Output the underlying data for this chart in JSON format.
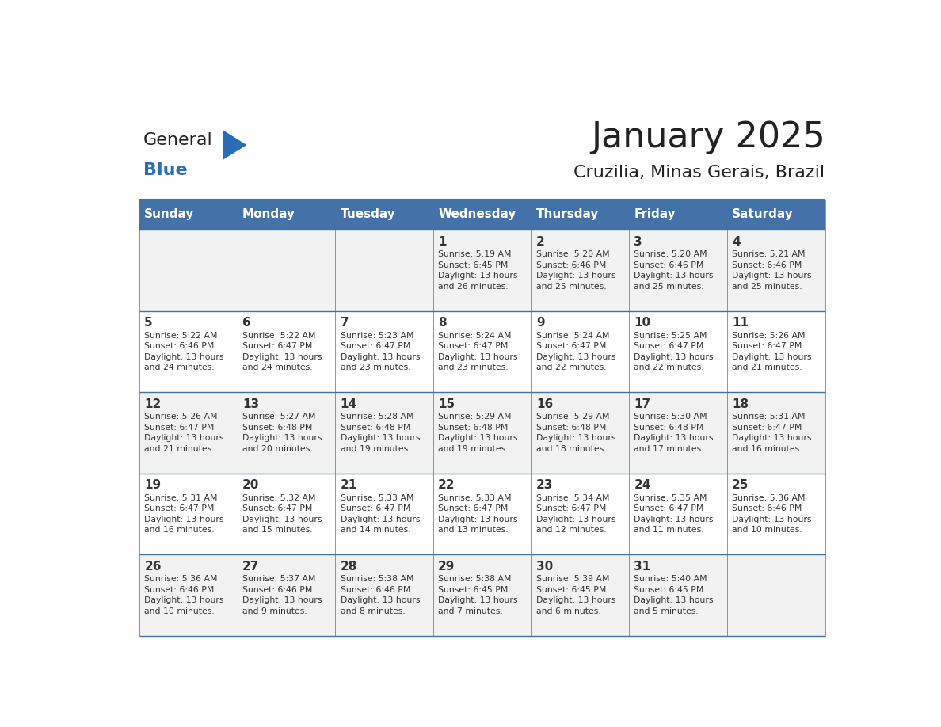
{
  "title": "January 2025",
  "subtitle": "Cruzilia, Minas Gerais, Brazil",
  "days_of_week": [
    "Sunday",
    "Monday",
    "Tuesday",
    "Wednesday",
    "Thursday",
    "Friday",
    "Saturday"
  ],
  "header_bg": "#4472a8",
  "header_text": "#ffffff",
  "row_bg_odd": "#f2f2f2",
  "row_bg_even": "#ffffff",
  "cell_text_color": "#333333",
  "day_num_color": "#333333",
  "grid_line_color": "#4472a8",
  "title_color": "#222222",
  "subtitle_color": "#222222",
  "logo_general_color": "#222222",
  "logo_blue_color": "#2a6db5",
  "calendar_data": [
    [
      {
        "day": null,
        "info": ""
      },
      {
        "day": null,
        "info": ""
      },
      {
        "day": null,
        "info": ""
      },
      {
        "day": 1,
        "info": "Sunrise: 5:19 AM\nSunset: 6:45 PM\nDaylight: 13 hours\nand 26 minutes."
      },
      {
        "day": 2,
        "info": "Sunrise: 5:20 AM\nSunset: 6:46 PM\nDaylight: 13 hours\nand 25 minutes."
      },
      {
        "day": 3,
        "info": "Sunrise: 5:20 AM\nSunset: 6:46 PM\nDaylight: 13 hours\nand 25 minutes."
      },
      {
        "day": 4,
        "info": "Sunrise: 5:21 AM\nSunset: 6:46 PM\nDaylight: 13 hours\nand 25 minutes."
      }
    ],
    [
      {
        "day": 5,
        "info": "Sunrise: 5:22 AM\nSunset: 6:46 PM\nDaylight: 13 hours\nand 24 minutes."
      },
      {
        "day": 6,
        "info": "Sunrise: 5:22 AM\nSunset: 6:47 PM\nDaylight: 13 hours\nand 24 minutes."
      },
      {
        "day": 7,
        "info": "Sunrise: 5:23 AM\nSunset: 6:47 PM\nDaylight: 13 hours\nand 23 minutes."
      },
      {
        "day": 8,
        "info": "Sunrise: 5:24 AM\nSunset: 6:47 PM\nDaylight: 13 hours\nand 23 minutes."
      },
      {
        "day": 9,
        "info": "Sunrise: 5:24 AM\nSunset: 6:47 PM\nDaylight: 13 hours\nand 22 minutes."
      },
      {
        "day": 10,
        "info": "Sunrise: 5:25 AM\nSunset: 6:47 PM\nDaylight: 13 hours\nand 22 minutes."
      },
      {
        "day": 11,
        "info": "Sunrise: 5:26 AM\nSunset: 6:47 PM\nDaylight: 13 hours\nand 21 minutes."
      }
    ],
    [
      {
        "day": 12,
        "info": "Sunrise: 5:26 AM\nSunset: 6:47 PM\nDaylight: 13 hours\nand 21 minutes."
      },
      {
        "day": 13,
        "info": "Sunrise: 5:27 AM\nSunset: 6:48 PM\nDaylight: 13 hours\nand 20 minutes."
      },
      {
        "day": 14,
        "info": "Sunrise: 5:28 AM\nSunset: 6:48 PM\nDaylight: 13 hours\nand 19 minutes."
      },
      {
        "day": 15,
        "info": "Sunrise: 5:29 AM\nSunset: 6:48 PM\nDaylight: 13 hours\nand 19 minutes."
      },
      {
        "day": 16,
        "info": "Sunrise: 5:29 AM\nSunset: 6:48 PM\nDaylight: 13 hours\nand 18 minutes."
      },
      {
        "day": 17,
        "info": "Sunrise: 5:30 AM\nSunset: 6:48 PM\nDaylight: 13 hours\nand 17 minutes."
      },
      {
        "day": 18,
        "info": "Sunrise: 5:31 AM\nSunset: 6:47 PM\nDaylight: 13 hours\nand 16 minutes."
      }
    ],
    [
      {
        "day": 19,
        "info": "Sunrise: 5:31 AM\nSunset: 6:47 PM\nDaylight: 13 hours\nand 16 minutes."
      },
      {
        "day": 20,
        "info": "Sunrise: 5:32 AM\nSunset: 6:47 PM\nDaylight: 13 hours\nand 15 minutes."
      },
      {
        "day": 21,
        "info": "Sunrise: 5:33 AM\nSunset: 6:47 PM\nDaylight: 13 hours\nand 14 minutes."
      },
      {
        "day": 22,
        "info": "Sunrise: 5:33 AM\nSunset: 6:47 PM\nDaylight: 13 hours\nand 13 minutes."
      },
      {
        "day": 23,
        "info": "Sunrise: 5:34 AM\nSunset: 6:47 PM\nDaylight: 13 hours\nand 12 minutes."
      },
      {
        "day": 24,
        "info": "Sunrise: 5:35 AM\nSunset: 6:47 PM\nDaylight: 13 hours\nand 11 minutes."
      },
      {
        "day": 25,
        "info": "Sunrise: 5:36 AM\nSunset: 6:46 PM\nDaylight: 13 hours\nand 10 minutes."
      }
    ],
    [
      {
        "day": 26,
        "info": "Sunrise: 5:36 AM\nSunset: 6:46 PM\nDaylight: 13 hours\nand 10 minutes."
      },
      {
        "day": 27,
        "info": "Sunrise: 5:37 AM\nSunset: 6:46 PM\nDaylight: 13 hours\nand 9 minutes."
      },
      {
        "day": 28,
        "info": "Sunrise: 5:38 AM\nSunset: 6:46 PM\nDaylight: 13 hours\nand 8 minutes."
      },
      {
        "day": 29,
        "info": "Sunrise: 5:38 AM\nSunset: 6:45 PM\nDaylight: 13 hours\nand 7 minutes."
      },
      {
        "day": 30,
        "info": "Sunrise: 5:39 AM\nSunset: 6:45 PM\nDaylight: 13 hours\nand 6 minutes."
      },
      {
        "day": 31,
        "info": "Sunrise: 5:40 AM\nSunset: 6:45 PM\nDaylight: 13 hours\nand 5 minutes."
      },
      {
        "day": null,
        "info": ""
      }
    ]
  ]
}
